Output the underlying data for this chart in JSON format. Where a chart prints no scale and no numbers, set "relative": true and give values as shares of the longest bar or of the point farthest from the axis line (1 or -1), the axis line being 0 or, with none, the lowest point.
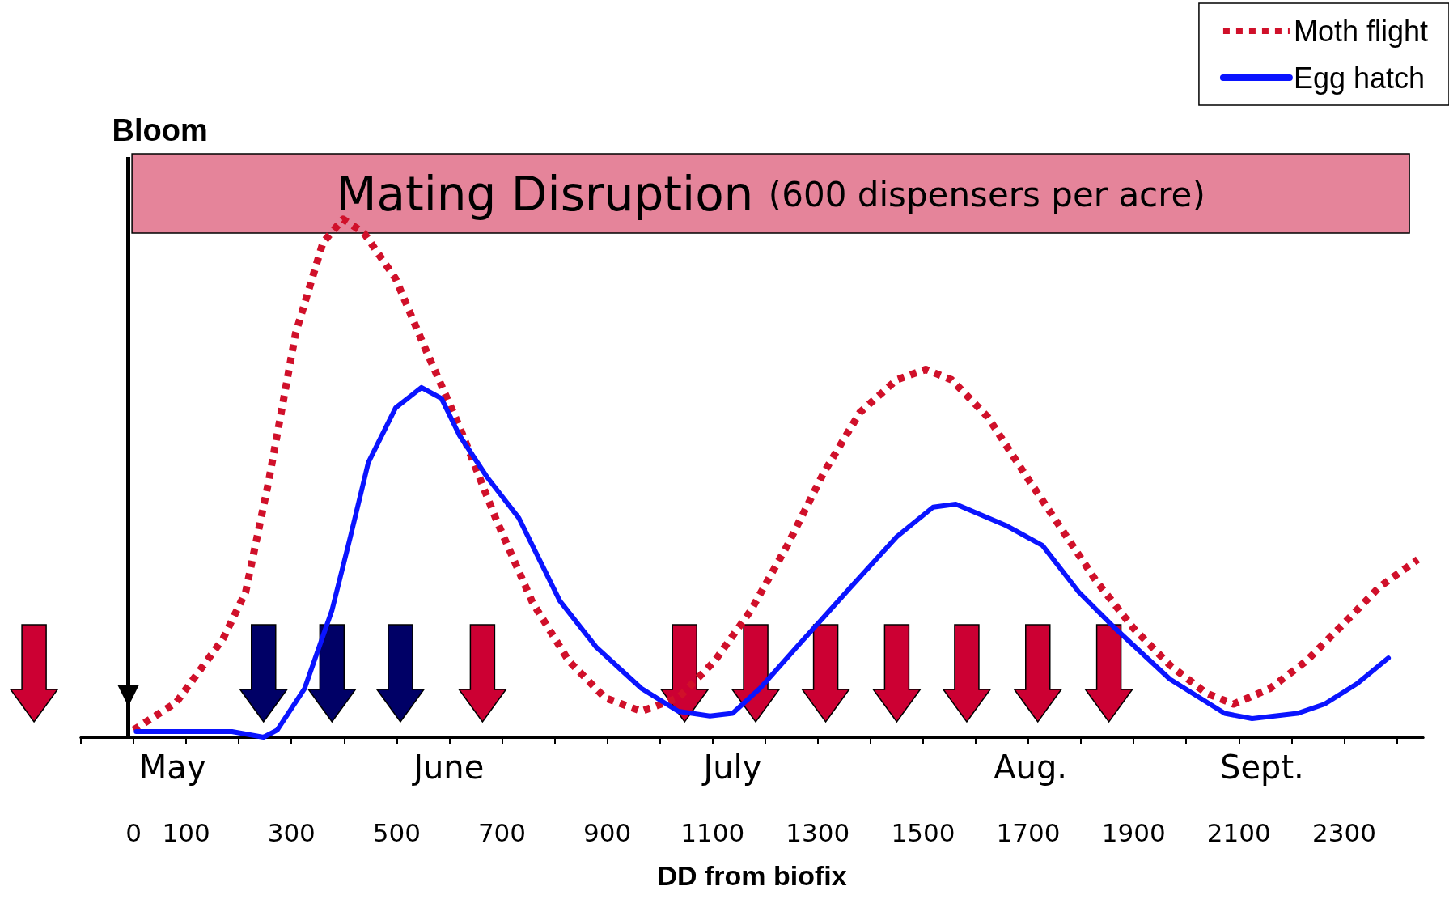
{
  "chart_data": {
    "type": "line",
    "relative": true,
    "xlabel": "DD from biofix",
    "legend": "top right",
    "grid": false,
    "marker": "none",
    "tick_labels": "x",
    "xlim": [
      -100,
      2450
    ],
    "xticks": [
      {
        "value": -100,
        "label": null
      },
      0,
      100,
      {
        "value": 200,
        "label": null
      },
      300,
      {
        "value": 400,
        "label": null
      },
      500,
      {
        "value": 600,
        "label": null
      },
      700,
      {
        "value": 800,
        "label": null
      },
      900,
      {
        "value": 1000,
        "label": null
      },
      1100,
      {
        "value": 1200,
        "label": null
      },
      1300,
      {
        "value": 1400,
        "label": null
      },
      1500,
      {
        "value": 1600,
        "label": null
      },
      1700,
      {
        "value": 1800,
        "label": null
      },
      1900,
      {
        "value": 2000,
        "label": null
      },
      2100,
      {
        "value": 2200,
        "label": null
      },
      2300,
      {
        "value": 2400,
        "label": null
      }
    ],
    "ref_lines": [
      {
        "axis": "x",
        "value": -10,
        "label": "Bloom",
        "color": "#000000"
      }
    ],
    "annotations": [
      "Mating Disruption (600 dispensers per acre)",
      "May",
      "June",
      "July",
      "Aug.",
      "Sept."
    ],
    "series": [
      {
        "name": "Moth flight",
        "color": "#d0102a",
        "line_style": "dotted",
        "x": [
          0,
          81,
          170,
          213,
          256,
          308,
          360,
          398,
          438,
          498,
          550,
          619,
          689,
          758,
          827,
          896,
          965,
          1035,
          1104,
          1173,
          1242,
          1311,
          1380,
          1450,
          1505,
          1554,
          1623,
          1692,
          1761,
          1830,
          1900,
          1969,
          2038,
          2090,
          2159,
          2228,
          2298,
          2367,
          2440
        ],
        "values": [
          0.014,
          0.067,
          0.19,
          0.28,
          0.49,
          0.78,
          0.955,
          1,
          0.973,
          0.885,
          0.76,
          0.6,
          0.42,
          0.26,
          0.147,
          0.076,
          0.05,
          0.076,
          0.147,
          0.245,
          0.37,
          0.51,
          0.627,
          0.69,
          0.71,
          0.69,
          0.618,
          0.51,
          0.405,
          0.3,
          0.21,
          0.139,
          0.085,
          0.064,
          0.094,
          0.147,
          0.218,
          0.29,
          0.343
        ]
      },
      {
        "name": "Egg hatch",
        "color": "#0a14ff",
        "line_style": "solid",
        "x": [
          5,
          187,
          247,
          273,
          325,
          377,
          412,
          446,
          498,
          547,
          585,
          619,
          671,
          732,
          810,
          879,
          965,
          1035,
          1095,
          1138,
          1190,
          1260,
          1363,
          1450,
          1519,
          1562,
          1657,
          1727,
          1796,
          1865,
          1969,
          2073,
          2125,
          2211,
          2263,
          2324,
          2384
        ],
        "values": [
          0.011,
          0.011,
          0,
          0.014,
          0.094,
          0.245,
          0.387,
          0.53,
          0.636,
          0.675,
          0.654,
          0.583,
          0.503,
          0.423,
          0.263,
          0.174,
          0.094,
          0.05,
          0.041,
          0.046,
          0.094,
          0.174,
          0.29,
          0.387,
          0.444,
          0.45,
          0.409,
          0.37,
          0.28,
          0.21,
          0.112,
          0.046,
          0.036,
          0.046,
          0.064,
          0.103,
          0.153
        ]
      }
    ]
  }
}
